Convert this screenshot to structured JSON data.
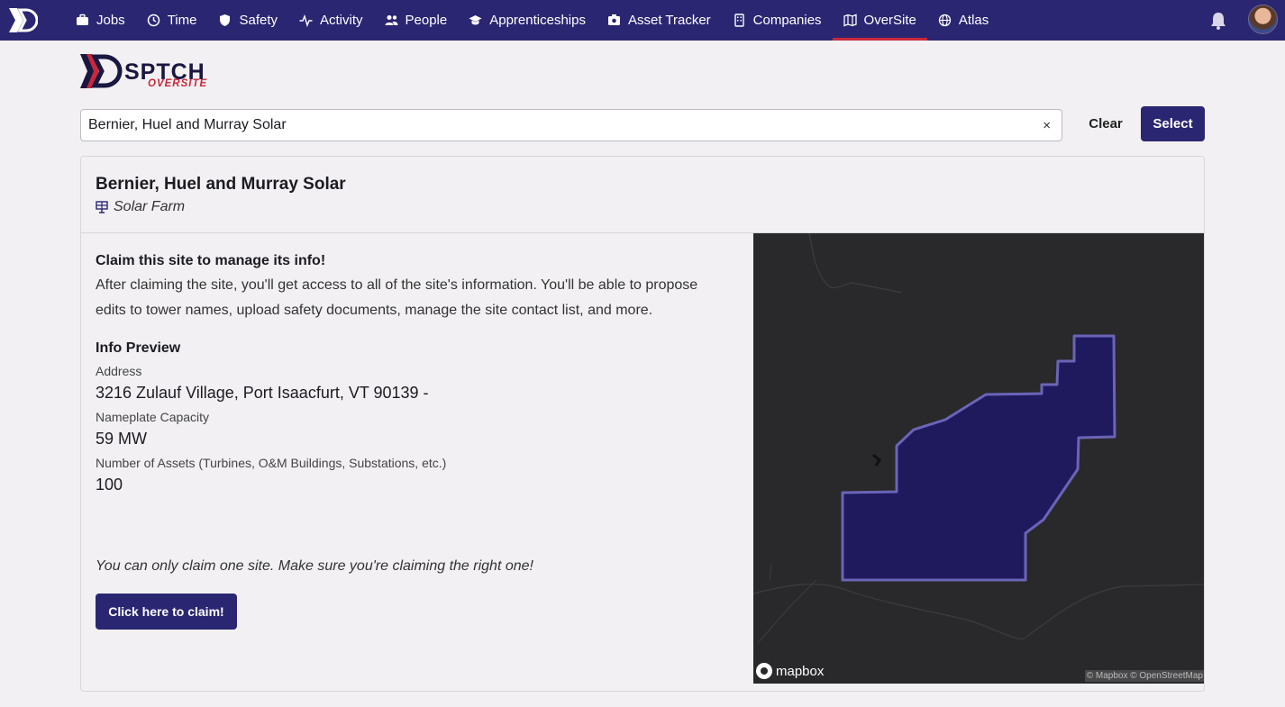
{
  "nav": {
    "items": [
      {
        "label": "Jobs",
        "icon": "briefcase-icon"
      },
      {
        "label": "Time",
        "icon": "clock-icon"
      },
      {
        "label": "Safety",
        "icon": "shield-icon"
      },
      {
        "label": "Activity",
        "icon": "pulse-icon"
      },
      {
        "label": "People",
        "icon": "people-icon"
      },
      {
        "label": "Apprenticeships",
        "icon": "graduation-cap-icon"
      },
      {
        "label": "Asset Tracker",
        "icon": "asset-icon"
      },
      {
        "label": "Companies",
        "icon": "building-icon"
      },
      {
        "label": "OverSite",
        "icon": "map-icon"
      },
      {
        "label": "Atlas",
        "icon": "globe-icon"
      }
    ],
    "active": "OverSite",
    "accent": "#2b2672",
    "active_underline": "#c8283b"
  },
  "brand": {
    "word": "SPTCH",
    "sub": "OVERSITE"
  },
  "search": {
    "value": "Bernier, Huel and Murray Solar",
    "clear_glyph": "×"
  },
  "actions": {
    "clear_label": "Clear",
    "select_label": "Select"
  },
  "site": {
    "name": "Bernier, Huel and Murray Solar",
    "type": "Solar Farm"
  },
  "claim": {
    "title": "Claim this site to manage its info!",
    "body": "After claiming the site, you'll get access to all of the site's information. You'll be able to propose edits to tower names, upload safety documents, manage the site contact list, and more.",
    "note": "You can only claim one site. Make sure you're claiming the right one!",
    "button_label": "Click here to claim!"
  },
  "preview": {
    "title": "Info Preview",
    "address_label": "Address",
    "address_value": "3216 Zulauf Village, Port Isaacfurt, VT 90139 -",
    "capacity_label": "Nameplate Capacity",
    "capacity_value": "59 MW",
    "assets_label": "Number of Assets (Turbines, O&M Buildings, Substations, etc.)",
    "assets_value": "100"
  },
  "map": {
    "logo_text": "mapbox",
    "attribution": "© Mapbox © OpenStreetMap",
    "polygon_fill": "#1f1a5e",
    "polygon_stroke": "#6a64b8"
  }
}
